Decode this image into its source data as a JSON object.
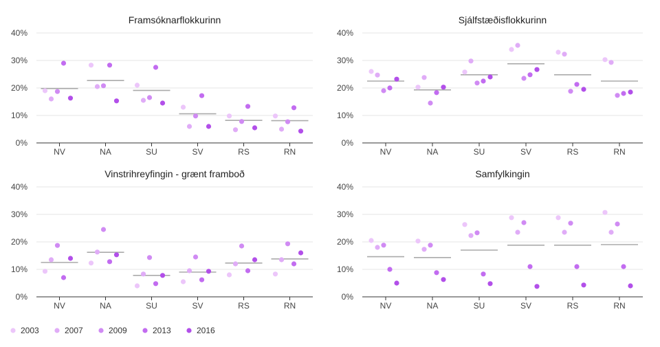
{
  "years": [
    "2003",
    "2007",
    "2009",
    "2013",
    "2016"
  ],
  "year_colors": [
    "#ecc6fa",
    "#e0acf7",
    "#d08bf3",
    "#c26cf0",
    "#b24fe9"
  ],
  "mean_line_color": "#aaaaaa",
  "chart_data": [
    {
      "type": "scatter",
      "title": "Framsóknarflokkurinn",
      "categories": [
        "NV",
        "NA",
        "SU",
        "SV",
        "RS",
        "RN"
      ],
      "ylim": [
        0,
        40
      ],
      "yticks": [
        "0%",
        "10%",
        "20%",
        "30%",
        "40%"
      ],
      "grid": true,
      "series": [
        {
          "name": "2003",
          "values": [
            19,
            28.3,
            21,
            13,
            9.8,
            9.8
          ]
        },
        {
          "name": "2007",
          "values": [
            16,
            20.5,
            15.5,
            6,
            4.8,
            5
          ]
        },
        {
          "name": "2009",
          "values": [
            18.7,
            20.8,
            16.5,
            9.8,
            7.8,
            7.7
          ]
        },
        {
          "name": "2013",
          "values": [
            29,
            28.3,
            27.5,
            17.2,
            13.3,
            12.8
          ]
        },
        {
          "name": "2016",
          "values": [
            16.3,
            15.3,
            14.5,
            6,
            5.5,
            4.3
          ]
        }
      ],
      "means": [
        19.8,
        22.7,
        19.1,
        10.6,
        8.2,
        8.1
      ]
    },
    {
      "type": "scatter",
      "title": "Sjálfstæðisflokkurinn",
      "categories": [
        "NV",
        "NA",
        "SU",
        "SV",
        "RS",
        "RN"
      ],
      "ylim": [
        0,
        40
      ],
      "yticks": [
        "0%",
        "10%",
        "20%",
        "30%",
        "40%"
      ],
      "grid": true,
      "series": [
        {
          "name": "2003",
          "values": [
            26,
            20.3,
            25.8,
            34,
            33,
            30.3
          ]
        },
        {
          "name": "2007",
          "values": [
            24.7,
            23.8,
            29.8,
            35.5,
            32.3,
            29.3
          ]
        },
        {
          "name": "2009",
          "values": [
            19,
            14.5,
            21.8,
            23.5,
            18.8,
            17.3
          ]
        },
        {
          "name": "2013",
          "values": [
            20,
            18.3,
            22.5,
            24.8,
            21.3,
            18
          ]
        },
        {
          "name": "2016",
          "values": [
            23.2,
            20.3,
            24,
            26.7,
            19.5,
            18.5
          ]
        }
      ],
      "means": [
        22.5,
        19.3,
        24.8,
        28.8,
        24.8,
        22.5
      ]
    },
    {
      "type": "scatter",
      "title": "Vinstrihreyfingin - grænt framboð",
      "categories": [
        "NV",
        "NA",
        "SU",
        "SV",
        "RS",
        "RN"
      ],
      "ylim": [
        0,
        40
      ],
      "yticks": [
        "0%",
        "10%",
        "20%",
        "30%",
        "40%"
      ],
      "grid": true,
      "series": [
        {
          "name": "2003",
          "values": [
            9.3,
            12.3,
            4,
            5.5,
            8,
            8.3
          ]
        },
        {
          "name": "2007",
          "values": [
            13.5,
            16.3,
            8.3,
            9.5,
            12,
            13.5
          ]
        },
        {
          "name": "2009",
          "values": [
            18.7,
            24.5,
            14.3,
            14.5,
            18.5,
            19.3
          ]
        },
        {
          "name": "2013",
          "values": [
            7,
            12.8,
            4.8,
            6.2,
            9.5,
            12
          ]
        },
        {
          "name": "2016",
          "values": [
            14,
            15.3,
            7.8,
            9.3,
            13.5,
            16
          ]
        }
      ],
      "means": [
        12.5,
        16.2,
        7.8,
        9,
        12.3,
        13.8
      ]
    },
    {
      "type": "scatter",
      "title": "Samfylkingin",
      "categories": [
        "NV",
        "NA",
        "SU",
        "SV",
        "RS",
        "RN"
      ],
      "ylim": [
        0,
        40
      ],
      "yticks": [
        "0%",
        "10%",
        "20%",
        "30%",
        "40%"
      ],
      "grid": true,
      "series": [
        {
          "name": "2003",
          "values": [
            20.5,
            20.3,
            26.3,
            28.8,
            28.8,
            30.7
          ]
        },
        {
          "name": "2007",
          "values": [
            18,
            17.3,
            22.3,
            23.5,
            23.5,
            23.5
          ]
        },
        {
          "name": "2009",
          "values": [
            18.8,
            18.8,
            23.3,
            27,
            26.8,
            26.5
          ]
        },
        {
          "name": "2013",
          "values": [
            10,
            8.8,
            8.3,
            11,
            11,
            11
          ]
        },
        {
          "name": "2016",
          "values": [
            5,
            6.3,
            4.8,
            3.8,
            4.3,
            4
          ]
        }
      ],
      "means": [
        14.6,
        14.3,
        17,
        18.8,
        18.8,
        19
      ]
    }
  ]
}
